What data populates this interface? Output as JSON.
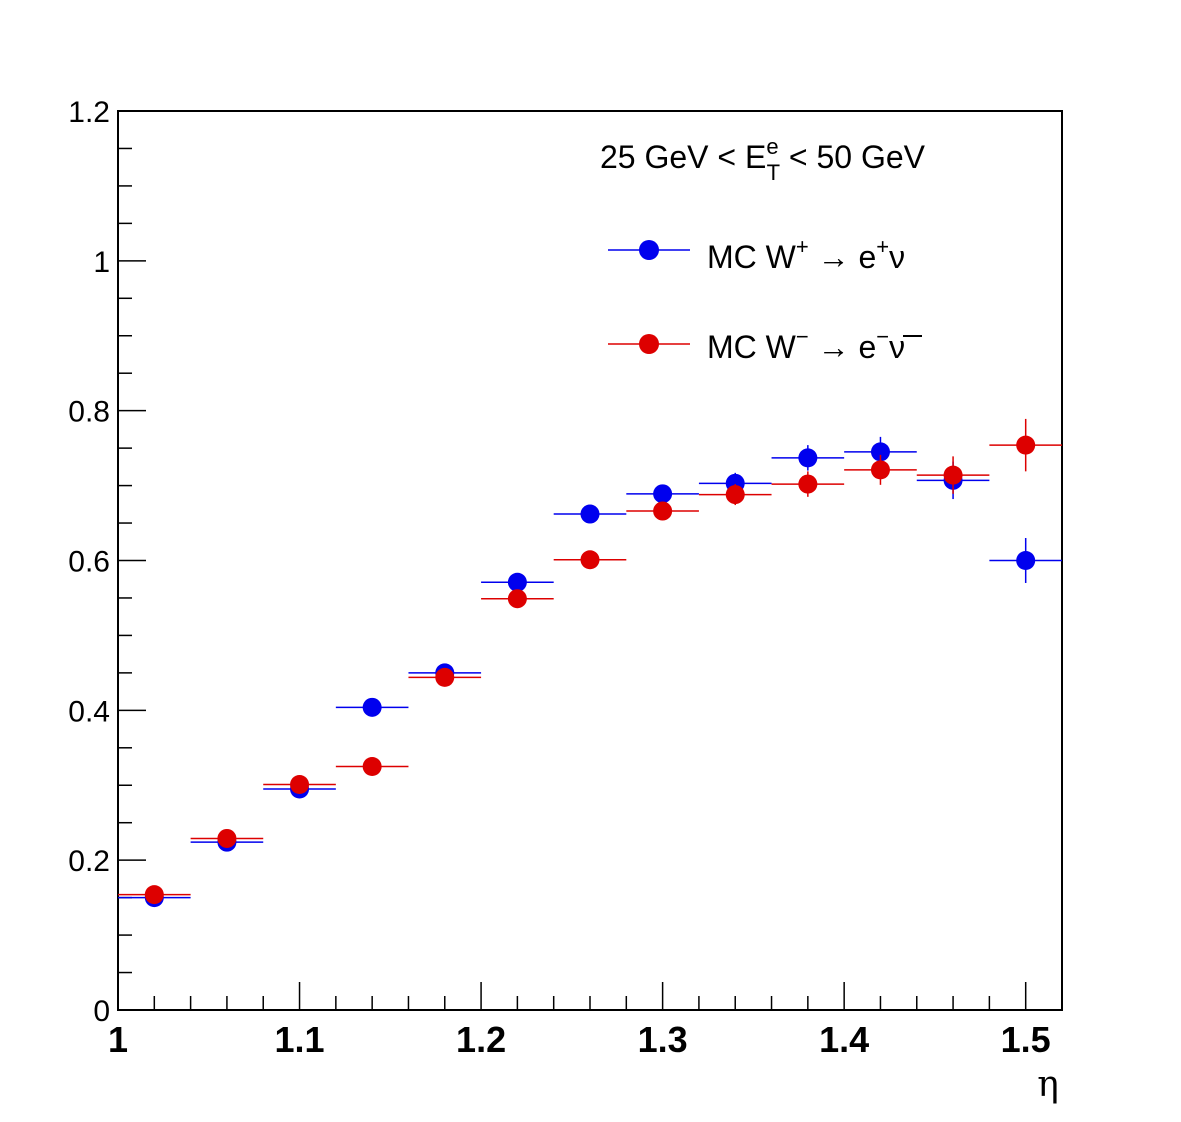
{
  "chart_data": {
    "type": "scatter",
    "xlabel": "η",
    "ylabel": "",
    "xlim": [
      1.0,
      1.52
    ],
    "ylim": [
      0,
      1.2
    ],
    "x_ticks": [
      1,
      1.1,
      1.2,
      1.3,
      1.4,
      1.5
    ],
    "x_tick_labels": [
      "1",
      "1.1",
      "1.2",
      "1.3",
      "1.4",
      "1.5"
    ],
    "y_ticks": [
      0,
      0.2,
      0.4,
      0.6,
      0.8,
      1,
      1.2
    ],
    "y_tick_labels": [
      "0",
      "0.2",
      "0.4",
      "0.6",
      "0.8",
      "1",
      "1.2"
    ],
    "grid": false,
    "legend_position": "top-right",
    "annotation": {
      "pre": "25 GeV < E",
      "sup": "e",
      "sub": "T",
      "post": " < 50 GeV"
    },
    "series": [
      {
        "name": "MC W+ → e+ν",
        "legend": {
          "a": "MC W",
          "a_sup": "+",
          "b": " → e",
          "b_sup": "+",
          "c": "ν"
        },
        "color": "#0000ee",
        "x": [
          1.02,
          1.06,
          1.1,
          1.14,
          1.18,
          1.22,
          1.26,
          1.3,
          1.34,
          1.38,
          1.42,
          1.46,
          1.5
        ],
        "y": [
          0.15,
          0.224,
          0.295,
          0.404,
          0.45,
          0.571,
          0.662,
          0.689,
          0.703,
          0.737,
          0.745,
          0.707,
          0.6
        ],
        "x_err": 0.02,
        "y_err": [
          0.004,
          0.005,
          0.006,
          0.007,
          0.008,
          0.009,
          0.01,
          0.012,
          0.014,
          0.017,
          0.02,
          0.025,
          0.03
        ]
      },
      {
        "name": "MC W− → e−ν̄",
        "legend": {
          "a": "MC W",
          "a_sup": "−",
          "b": " → e",
          "b_sup": "−",
          "c": "ν"
        },
        "color": "#dd0000",
        "x": [
          1.02,
          1.06,
          1.1,
          1.14,
          1.18,
          1.22,
          1.26,
          1.3,
          1.34,
          1.38,
          1.42,
          1.46,
          1.5
        ],
        "y": [
          0.154,
          0.229,
          0.301,
          0.325,
          0.444,
          0.549,
          0.601,
          0.666,
          0.688,
          0.702,
          0.721,
          0.714,
          0.754
        ],
        "x_err": 0.02,
        "y_err": [
          0.004,
          0.005,
          0.006,
          0.007,
          0.008,
          0.009,
          0.01,
          0.012,
          0.014,
          0.017,
          0.02,
          0.025,
          0.035
        ]
      }
    ]
  }
}
